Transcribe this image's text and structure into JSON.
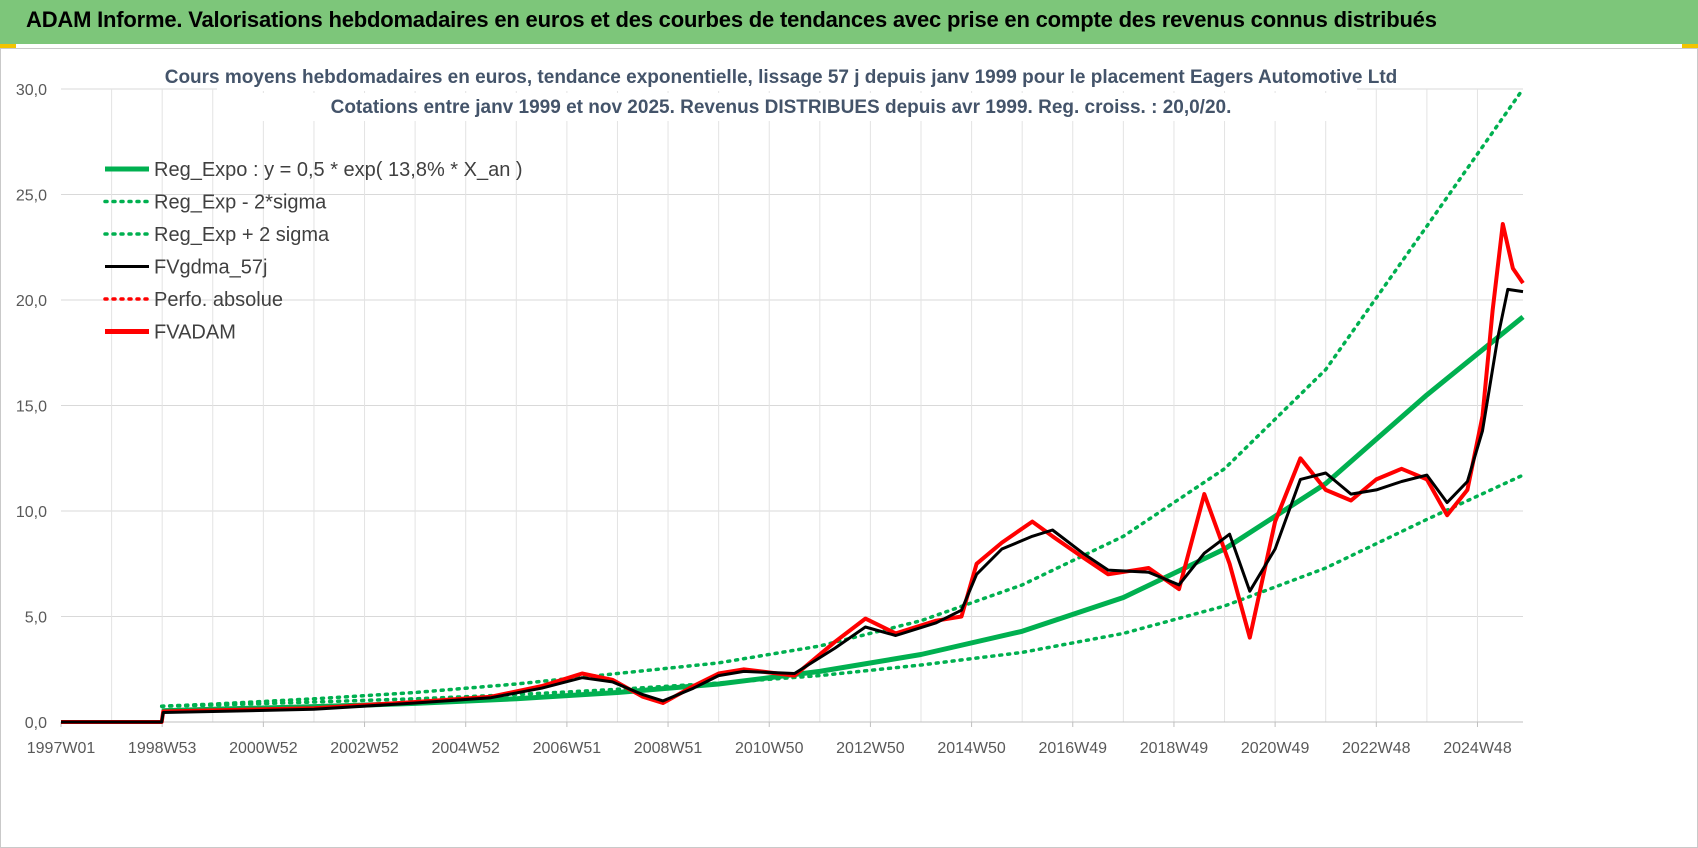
{
  "header": {
    "title": "ADAM Informe. Valorisations hebdomadaires en euros et des courbes de tendances avec prise en compte des revenus connus distribués"
  },
  "colors": {
    "header_bg": "#7dc67a",
    "green": "#00b050",
    "red": "#ff0000",
    "black": "#000000",
    "grid": "#d9d9d9"
  },
  "chart_data": {
    "type": "line",
    "title_lines": [
      "Cours moyens hebdomadaires en euros, tendance exponentielle, lissage 57 j depuis janv 1999 pour le placement Eagers Automotive Ltd",
      "Cotations entre janv 1999 et nov 2025. Revenus DISTRIBUES depuis avr 1999. Reg. croiss. : 20,0/20."
    ],
    "ylim": [
      0,
      30
    ],
    "y_ticks": [
      "0,0",
      "5,0",
      "10,0",
      "15,0",
      "20,0",
      "25,0",
      "30,0"
    ],
    "xlim": [
      1997.0,
      2025.9
    ],
    "x_tick_labels": [
      "1997W01",
      "1998W53",
      "2000W52",
      "2002W52",
      "2004W52",
      "2006W51",
      "2008W51",
      "2010W50",
      "2012W50",
      "2014W50",
      "2016W49",
      "2018W49",
      "2020W49",
      "2022W48",
      "2024W48"
    ],
    "grid": true,
    "legend_position": "top-left",
    "legend": [
      {
        "label": "Reg_Expo : y = 0,5 * exp( 13,8% *  X_an )",
        "color": "#00b050",
        "style": "solid-thick"
      },
      {
        "label": "Reg_Exp - 2*sigma",
        "color": "#00b050",
        "style": "dotted"
      },
      {
        "label": "Reg_Exp + 2 sigma",
        "color": "#00b050",
        "style": "dotted"
      },
      {
        "label": "FVgdma_57j",
        "color": "#000000",
        "style": "solid"
      },
      {
        "label": "Perfo. absolue",
        "color": "#ff0000",
        "style": "dotted"
      },
      {
        "label": "FVADAM",
        "color": "#ff0000",
        "style": "solid-thick"
      }
    ],
    "series": [
      {
        "name": "Reg_Expo : y = 0,5 * exp( 13,8% *  X_an )",
        "x": [
          1998.99,
          2000,
          2002,
          2004,
          2006,
          2008,
          2010,
          2012,
          2014,
          2016,
          2018,
          2020,
          2022,
          2024,
          2025.9
        ],
        "values": [
          0.53,
          0.6,
          0.73,
          0.88,
          1.1,
          1.4,
          1.8,
          2.4,
          3.2,
          4.3,
          5.9,
          8.2,
          11.3,
          15.5,
          19.2
        ]
      },
      {
        "name": "Reg_Exp - 2*sigma",
        "x": [
          1998.99,
          2000,
          2002,
          2004,
          2006,
          2008,
          2010,
          2012,
          2014,
          2016,
          2018,
          2020,
          2022,
          2024,
          2025.9
        ],
        "values": [
          0.75,
          0.8,
          0.95,
          1.1,
          1.3,
          1.55,
          1.85,
          2.2,
          2.7,
          3.3,
          4.2,
          5.5,
          7.3,
          9.6,
          11.7
        ]
      },
      {
        "name": "Reg_Exp + 2 sigma",
        "x": [
          1998.99,
          2000,
          2002,
          2004,
          2006,
          2008,
          2010,
          2012,
          2014,
          2016,
          2018,
          2020,
          2022,
          2024,
          2025.9
        ],
        "values": [
          0.75,
          0.85,
          1.1,
          1.4,
          1.8,
          2.3,
          2.8,
          3.6,
          4.8,
          6.5,
          8.8,
          12.0,
          16.7,
          23.5,
          30.0
        ]
      },
      {
        "name": "FVgdma_57j",
        "x": [
          1997.0,
          1998.99,
          1999.02,
          2000,
          2002,
          2004,
          2005.5,
          2006.5,
          2007.3,
          2007.9,
          2008.5,
          2008.9,
          2009.5,
          2010.0,
          2010.5,
          2011.5,
          2012.3,
          2012.9,
          2013.5,
          2014.3,
          2014.8,
          2015.1,
          2015.6,
          2016.2,
          2016.6,
          2017.2,
          2017.7,
          2018.5,
          2019.1,
          2019.6,
          2020.1,
          2020.5,
          2021.0,
          2021.5,
          2022.0,
          2022.5,
          2023.0,
          2023.5,
          2024.0,
          2024.4,
          2024.8,
          2025.1,
          2025.4,
          2025.6,
          2025.9
        ],
        "values": [
          0,
          0,
          0.45,
          0.5,
          0.6,
          0.9,
          1.15,
          1.6,
          2.1,
          1.9,
          1.3,
          1.0,
          1.6,
          2.2,
          2.4,
          2.3,
          3.5,
          4.5,
          4.1,
          4.7,
          5.3,
          7.0,
          8.2,
          8.8,
          9.1,
          8.0,
          7.2,
          7.1,
          6.5,
          8.0,
          8.9,
          6.2,
          8.2,
          11.5,
          11.8,
          10.8,
          11.0,
          11.4,
          11.7,
          10.4,
          11.4,
          13.8,
          18.2,
          20.5,
          20.4
        ]
      },
      {
        "name": "FVADAM",
        "x": [
          1997.0,
          1998.99,
          1999.02,
          2000,
          2002,
          2004,
          2005.5,
          2006.5,
          2007.3,
          2007.9,
          2008.5,
          2008.9,
          2009.5,
          2010.0,
          2010.5,
          2011.5,
          2012.3,
          2012.9,
          2013.5,
          2014.3,
          2014.8,
          2015.1,
          2015.6,
          2016.2,
          2016.6,
          2017.2,
          2017.7,
          2018.5,
          2019.1,
          2019.6,
          2020.1,
          2020.5,
          2021.0,
          2021.5,
          2022.0,
          2022.5,
          2023.0,
          2023.5,
          2024.0,
          2024.4,
          2024.8,
          2025.1,
          2025.3,
          2025.5,
          2025.7,
          2025.9
        ],
        "values": [
          0,
          0,
          0.5,
          0.55,
          0.65,
          0.95,
          1.2,
          1.7,
          2.3,
          2.0,
          1.2,
          0.9,
          1.7,
          2.3,
          2.5,
          2.2,
          3.8,
          4.9,
          4.2,
          4.8,
          5.0,
          7.5,
          8.5,
          9.5,
          8.8,
          7.8,
          7.0,
          7.3,
          6.3,
          10.8,
          7.5,
          4.0,
          9.5,
          12.5,
          11.0,
          10.5,
          11.5,
          12.0,
          11.5,
          9.8,
          11.0,
          14.5,
          19.5,
          23.6,
          21.5,
          20.8
        ]
      }
    ]
  }
}
